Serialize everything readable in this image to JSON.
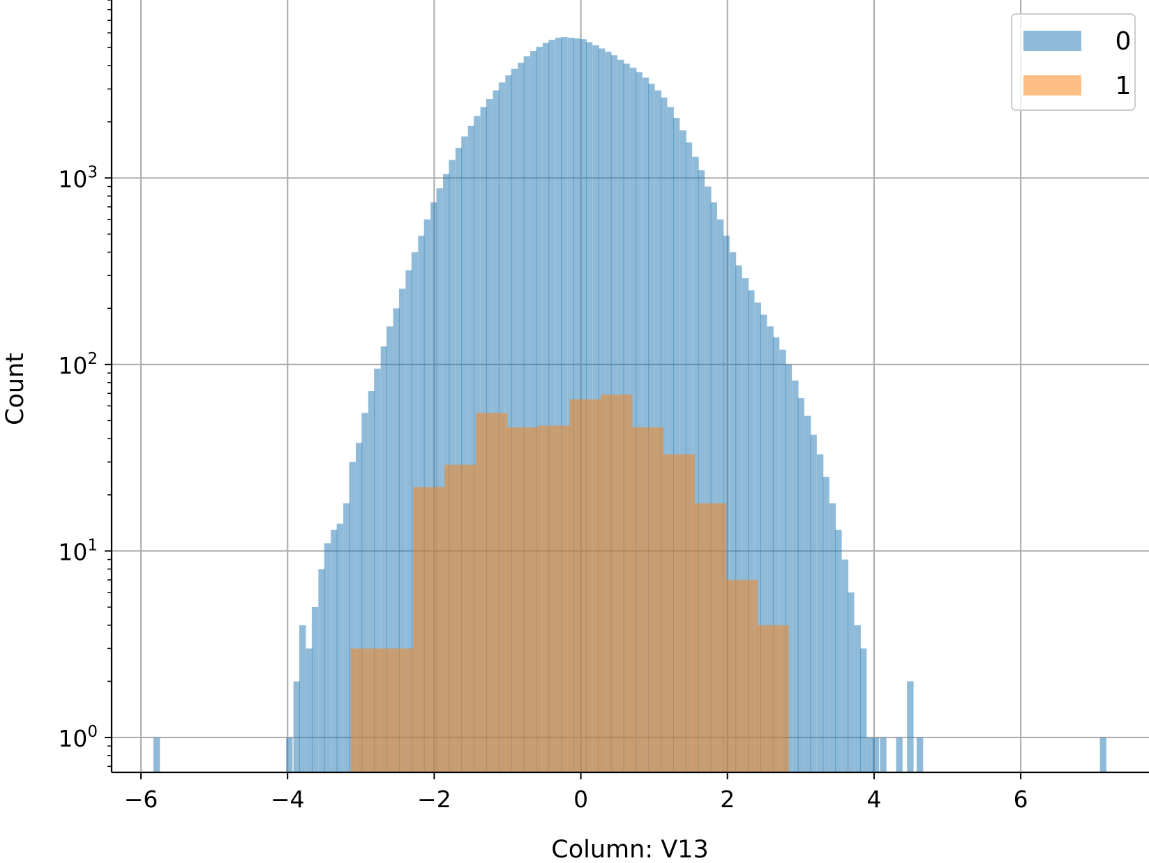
{
  "chart_data": {
    "type": "bar",
    "chart_kind": "histogram",
    "title": "",
    "xlabel": "Column: V13",
    "ylabel": "Count",
    "xlim": [
      -6.4,
      7.75
    ],
    "ylim": [
      0.65,
      9000
    ],
    "yscale": "log",
    "grid": true,
    "legend_position": "top-right",
    "x_ticks": [
      -6,
      -4,
      -2,
      0,
      2,
      4,
      6
    ],
    "x_tick_labels": [
      "−6",
      "−4",
      "−2",
      "0",
      "2",
      "4",
      "6"
    ],
    "y_ticks": [
      1,
      10,
      100,
      1000
    ],
    "y_tick_labels": [
      {
        "base": "10",
        "exp": "0"
      },
      {
        "base": "10",
        "exp": "1"
      },
      {
        "base": "10",
        "exp": "2"
      },
      {
        "base": "10",
        "exp": "3"
      }
    ],
    "series": [
      {
        "name": "0",
        "color": "#1f77b4",
        "alpha": 0.5,
        "bin_width": 0.0852,
        "bins": [
          [
            -5.83,
            1
          ],
          [
            -4.02,
            1
          ],
          [
            -3.92,
            2
          ],
          [
            -3.84,
            4
          ],
          [
            -3.75,
            3
          ],
          [
            -3.67,
            5
          ],
          [
            -3.58,
            8
          ],
          [
            -3.5,
            11
          ],
          [
            -3.41,
            13
          ],
          [
            -3.33,
            14
          ],
          [
            -3.24,
            18
          ],
          [
            -3.16,
            30
          ],
          [
            -3.07,
            38
          ],
          [
            -2.99,
            55
          ],
          [
            -2.9,
            72
          ],
          [
            -2.82,
            95
          ],
          [
            -2.73,
            125
          ],
          [
            -2.65,
            160
          ],
          [
            -2.56,
            200
          ],
          [
            -2.48,
            255
          ],
          [
            -2.39,
            320
          ],
          [
            -2.31,
            400
          ],
          [
            -2.22,
            490
          ],
          [
            -2.14,
            600
          ],
          [
            -2.05,
            740
          ],
          [
            -1.97,
            880
          ],
          [
            -1.88,
            1050
          ],
          [
            -1.8,
            1250
          ],
          [
            -1.71,
            1450
          ],
          [
            -1.63,
            1670
          ],
          [
            -1.54,
            1900
          ],
          [
            -1.46,
            2150
          ],
          [
            -1.37,
            2400
          ],
          [
            -1.29,
            2650
          ],
          [
            -1.2,
            2950
          ],
          [
            -1.12,
            3250
          ],
          [
            -1.03,
            3550
          ],
          [
            -0.95,
            3850
          ],
          [
            -0.86,
            4150
          ],
          [
            -0.78,
            4500
          ],
          [
            -0.69,
            4800
          ],
          [
            -0.61,
            5050
          ],
          [
            -0.52,
            5300
          ],
          [
            -0.44,
            5500
          ],
          [
            -0.35,
            5650
          ],
          [
            -0.27,
            5700
          ],
          [
            -0.18,
            5650
          ],
          [
            -0.1,
            5600
          ],
          [
            -0.01,
            5550
          ],
          [
            0.07,
            5350
          ],
          [
            0.16,
            5150
          ],
          [
            0.24,
            4950
          ],
          [
            0.33,
            4750
          ],
          [
            0.41,
            4550
          ],
          [
            0.5,
            4300
          ],
          [
            0.58,
            4100
          ],
          [
            0.67,
            3900
          ],
          [
            0.75,
            3700
          ],
          [
            0.84,
            3450
          ],
          [
            0.92,
            3200
          ],
          [
            1.01,
            2950
          ],
          [
            1.09,
            2700
          ],
          [
            1.18,
            2400
          ],
          [
            1.26,
            2100
          ],
          [
            1.35,
            1800
          ],
          [
            1.43,
            1550
          ],
          [
            1.52,
            1300
          ],
          [
            1.6,
            1100
          ],
          [
            1.69,
            900
          ],
          [
            1.77,
            740
          ],
          [
            1.86,
            600
          ],
          [
            1.94,
            490
          ],
          [
            2.03,
            400
          ],
          [
            2.11,
            340
          ],
          [
            2.2,
            290
          ],
          [
            2.28,
            250
          ],
          [
            2.37,
            215
          ],
          [
            2.45,
            185
          ],
          [
            2.54,
            160
          ],
          [
            2.62,
            140
          ],
          [
            2.71,
            120
          ],
          [
            2.79,
            100
          ],
          [
            2.88,
            82
          ],
          [
            2.96,
            66
          ],
          [
            3.05,
            53
          ],
          [
            3.13,
            42
          ],
          [
            3.22,
            33
          ],
          [
            3.3,
            25
          ],
          [
            3.39,
            18
          ],
          [
            3.47,
            13
          ],
          [
            3.56,
            9
          ],
          [
            3.64,
            6
          ],
          [
            3.73,
            4
          ],
          [
            3.81,
            3
          ],
          [
            3.9,
            1
          ],
          [
            3.98,
            1
          ],
          [
            4.08,
            1
          ],
          [
            4.3,
            1
          ],
          [
            4.45,
            2
          ],
          [
            4.58,
            1
          ],
          [
            7.08,
            1
          ]
        ]
      },
      {
        "name": "1",
        "color": "#ff7f0e",
        "alpha": 0.5,
        "bin_width": 0.4266,
        "bins": [
          [
            -3.14,
            3
          ],
          [
            -2.713,
            3
          ],
          [
            -2.287,
            22
          ],
          [
            -1.86,
            29
          ],
          [
            -1.433,
            55
          ],
          [
            -1.007,
            46
          ],
          [
            -0.58,
            47
          ],
          [
            -0.153,
            65
          ],
          [
            0.273,
            69
          ],
          [
            0.7,
            46
          ],
          [
            1.127,
            33
          ],
          [
            1.553,
            18
          ],
          [
            1.98,
            7
          ],
          [
            2.407,
            4
          ]
        ]
      }
    ]
  }
}
